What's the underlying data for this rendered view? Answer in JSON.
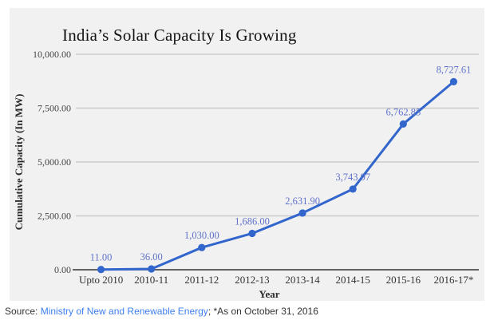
{
  "chart_data": {
    "type": "line",
    "title": "India’s Solar Capacity Is Growing",
    "xlabel": "Year",
    "ylabel": "Cumulative Capacity (In MW)",
    "categories": [
      "Upto 2010",
      "2010-11",
      "2011-12",
      "2012-13",
      "2013-14",
      "2014-15",
      "2015-16",
      "2016-17*"
    ],
    "values": [
      11.0,
      36.0,
      1030.0,
      1686.0,
      2631.9,
      3743.97,
      6762.85,
      8727.61
    ],
    "point_labels": [
      "11.00",
      "36.00",
      "1,030.00",
      "1,686.00",
      "2,631.90",
      "3,743.97",
      "6,762.85",
      "8,727.61"
    ],
    "ylim": [
      0,
      10000
    ],
    "yticks": [
      0,
      2500,
      5000,
      7500,
      10000
    ],
    "ytick_labels": [
      "0.00",
      "2,500.00",
      "5,000.00",
      "7,500.00",
      "10,000.00"
    ],
    "grid": true,
    "legend": "none",
    "colors": {
      "line": "#3366cc",
      "marker": "#3366cc",
      "point_label": "#6173c9",
      "grid": "#cccccc",
      "baseline": "#333333",
      "panel_bg": "#f1f1f2"
    }
  },
  "footer": {
    "source_prefix": "Source: ",
    "source_link": "Ministry of New and Renewable Energy",
    "source_suffix": "; *As on October 31, 2016"
  }
}
